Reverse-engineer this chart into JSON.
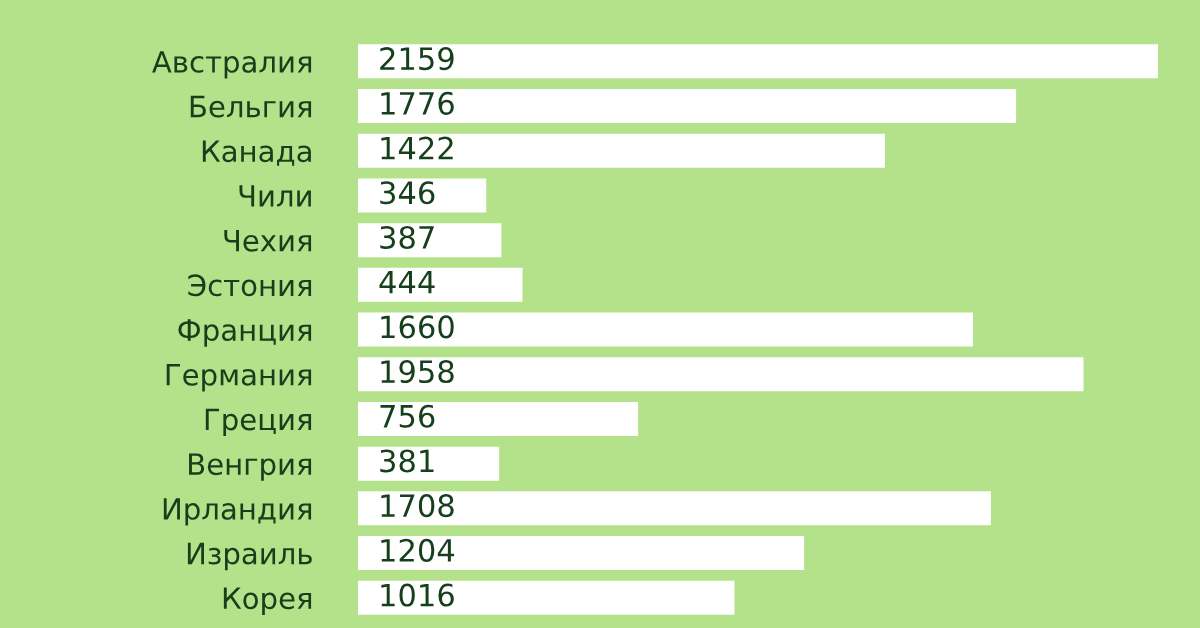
{
  "chart_data": {
    "type": "bar",
    "orientation": "horizontal",
    "categories": [
      "Австралия",
      "Бельгия",
      "Канада",
      "Чили",
      "Чехия",
      "Эстония",
      "Франция",
      "Германия",
      "Греция",
      "Венгрия",
      "Ирландия",
      "Израиль",
      "Корея"
    ],
    "values": [
      2159,
      1776,
      1422,
      346,
      387,
      444,
      1660,
      1958,
      756,
      381,
      1708,
      1204,
      1016
    ],
    "color": "#ffffff",
    "data_labels": true,
    "tick_labels": "y",
    "grid": false,
    "legend": false
  }
}
